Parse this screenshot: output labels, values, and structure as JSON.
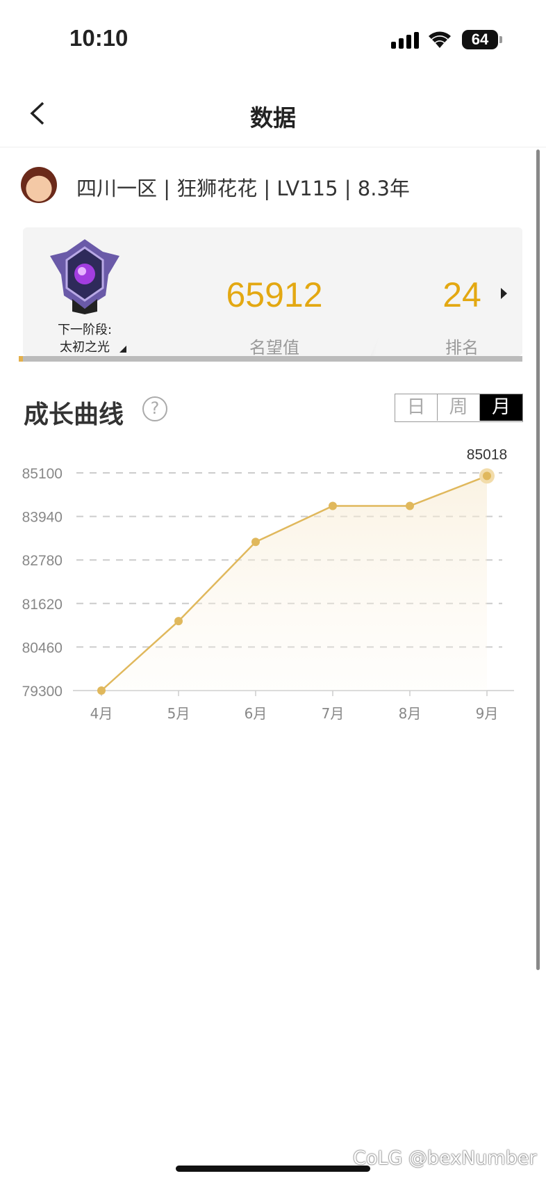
{
  "status_bar": {
    "time": "10:10",
    "battery": "64"
  },
  "nav": {
    "title": "数据"
  },
  "profile": {
    "text": "四川一区 | 狂狮花花 | LV115 | 8.3年"
  },
  "card": {
    "next_stage_label": "下一阶段:",
    "next_stage_name": "太初之光",
    "reputation_value": "65912",
    "reputation_label": "名望值",
    "rank_value": "24",
    "rank_label": "排名"
  },
  "growth": {
    "title": "成长曲线",
    "help": "?",
    "tabs": [
      "日",
      "周",
      "月"
    ],
    "selected_tab": "月"
  },
  "colors": {
    "accent": "#e3a812",
    "line": "#e0b85c"
  },
  "chart_data": {
    "type": "area",
    "categories": [
      "4月",
      "5月",
      "6月",
      "7月",
      "8月",
      "9月"
    ],
    "values": [
      79300,
      81150,
      83260,
      84220,
      84220,
      85018
    ],
    "yticks": [
      "85100",
      "83940",
      "82780",
      "81620",
      "80460",
      "79300"
    ],
    "ylim": [
      79300,
      85100
    ],
    "grid": true,
    "highlight_label": "85018"
  },
  "watermark": "CoLG @bexNumber"
}
